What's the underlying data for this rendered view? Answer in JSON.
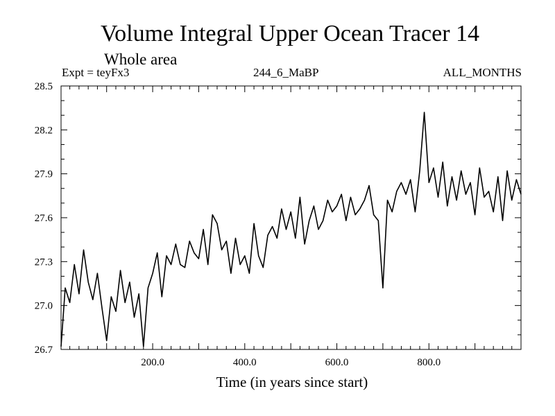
{
  "chart_data": {
    "type": "line",
    "title": "Volume Integral Upper Ocean Tracer 14",
    "subtitle": "Whole area",
    "left_label": "Expt = teyFx3",
    "center_label": "244_6_MaBP",
    "right_label": "ALL_MONTHS",
    "xlabel": "Time (in years since start)",
    "ylabel": "",
    "xlim": [
      1,
      1000
    ],
    "ylim": [
      26.7,
      28.5
    ],
    "x_ticks": [
      200.0,
      400.0,
      600.0,
      800.0
    ],
    "x_tick_labels": [
      "200.0",
      "400.0",
      "600.0",
      "800.0"
    ],
    "y_ticks": [
      26.7,
      27.0,
      27.3,
      27.6,
      27.9,
      28.2,
      28.5
    ],
    "y_tick_labels": [
      "26.7",
      "27.0",
      "27.3",
      "27.6",
      "27.9",
      "28.2",
      "28.5"
    ],
    "grid": false,
    "series": [
      {
        "name": "Volume Integral Upper Ocean Tracer 14",
        "x": [
          1,
          10,
          20,
          30,
          40,
          50,
          60,
          70,
          80,
          90,
          100,
          110,
          120,
          130,
          140,
          150,
          160,
          170,
          180,
          190,
          200,
          210,
          220,
          230,
          240,
          250,
          260,
          270,
          280,
          290,
          300,
          310,
          320,
          330,
          340,
          350,
          360,
          370,
          380,
          390,
          400,
          410,
          420,
          430,
          440,
          450,
          460,
          470,
          480,
          490,
          500,
          510,
          520,
          530,
          540,
          550,
          560,
          570,
          580,
          590,
          600,
          610,
          620,
          630,
          640,
          650,
          660,
          670,
          680,
          690,
          700,
          710,
          720,
          730,
          740,
          750,
          760,
          770,
          780,
          790,
          800,
          810,
          820,
          830,
          840,
          850,
          860,
          870,
          880,
          890,
          900,
          910,
          920,
          930,
          940,
          950,
          960,
          970,
          980,
          990,
          1000
        ],
        "values": [
          26.72,
          27.12,
          27.02,
          27.28,
          27.08,
          27.38,
          27.16,
          27.04,
          27.22,
          26.98,
          26.76,
          27.06,
          26.96,
          27.24,
          27.02,
          27.16,
          26.92,
          27.08,
          26.72,
          27.12,
          27.22,
          27.36,
          27.06,
          27.34,
          27.28,
          27.42,
          27.28,
          27.26,
          27.44,
          27.36,
          27.32,
          27.52,
          27.28,
          27.62,
          27.56,
          27.38,
          27.44,
          27.22,
          27.46,
          27.28,
          27.34,
          27.22,
          27.56,
          27.34,
          27.26,
          27.48,
          27.54,
          27.46,
          27.66,
          27.52,
          27.64,
          27.46,
          27.74,
          27.42,
          27.58,
          27.68,
          27.52,
          27.58,
          27.72,
          27.64,
          27.68,
          27.76,
          27.58,
          27.74,
          27.62,
          27.66,
          27.72,
          27.82,
          27.62,
          27.58,
          27.12,
          27.72,
          27.64,
          27.78,
          27.84,
          27.76,
          27.86,
          27.64,
          27.92,
          28.32,
          27.84,
          27.94,
          27.74,
          27.98,
          27.68,
          27.88,
          27.72,
          27.92,
          27.76,
          27.84,
          27.62,
          27.94,
          27.74,
          27.78,
          27.64,
          27.88,
          27.58,
          27.92,
          27.72,
          27.86,
          27.76
        ]
      }
    ]
  }
}
